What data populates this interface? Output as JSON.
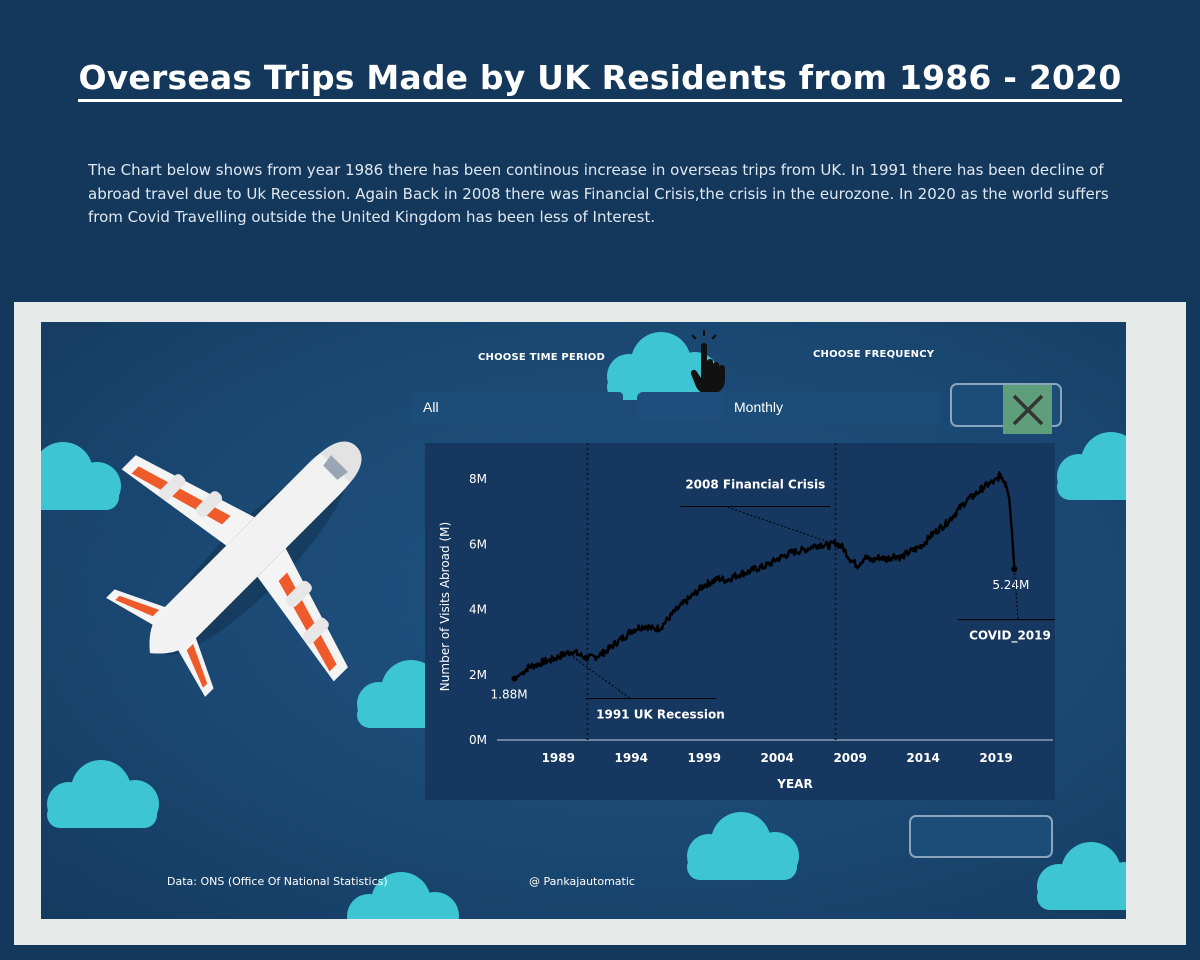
{
  "page": {
    "title": "Overseas Trips Made by UK Residents from 1986 - 2020",
    "description": "The Chart below shows from year 1986 there has been continous increase in overseas trips from UK. In 1991 there has been decline of  abroad travel due to Uk Recession.   Again Back in 2008 there was Financial Crisis,the crisis in the eurozone. In 2020 as the world suffers from Covid Travelling outside the United Kingdom has been less of Interest."
  },
  "controls": {
    "time_period_label": "CHOOSE TIME PERIOD",
    "time_period_value": "All",
    "frequency_label": "CHOOSE FREQUENCY",
    "frequency_value": "Monthly"
  },
  "icons": {
    "pointer": "hand-pointer-icon",
    "close": "close-icon",
    "plane": "airplane-icon",
    "clouds": "cloud-icon"
  },
  "colors": {
    "page_bg": "#14375c",
    "dashboard_bg": "#1a4872",
    "chart_bg": "#16375f",
    "cloud": "#3ec5d3",
    "line": "#000000",
    "close_bg": "#5e9e7b"
  },
  "footer": {
    "source": "Data: ONS (Office Of National Statistics)",
    "credit": "@ Pankajautomatic"
  },
  "chart_data": {
    "type": "line",
    "title": "",
    "xlabel": "YEAR",
    "ylabel": "Number of Visits Abroad (M)",
    "xlim": [
      1984.8,
      2022.9
    ],
    "ylim": [
      0,
      8.8
    ],
    "x_ticks": [
      1989,
      1994,
      1999,
      2004,
      2009,
      2014,
      2019
    ],
    "y_ticks": [
      0,
      2,
      4,
      6,
      8
    ],
    "y_tick_labels": [
      "0M",
      "2M",
      "4M",
      "6M",
      "8M"
    ],
    "grid": false,
    "series": [
      {
        "x": [
          1986.0,
          1986.5,
          1987.0,
          1987.5,
          1988.0,
          1988.5,
          1989.0,
          1989.5,
          1990.0,
          1990.5,
          1991.0,
          1991.5,
          1992.0,
          1992.5,
          1993.0,
          1993.5,
          1994.0,
          1994.5,
          1995.0,
          1995.5,
          1996.0,
          1996.5,
          1997.0,
          1997.5,
          1998.0,
          1998.5,
          1999.0,
          1999.5,
          2000.0,
          2000.5,
          2001.0,
          2001.5,
          2002.0,
          2002.5,
          2003.0,
          2003.5,
          2004.0,
          2004.5,
          2005.0,
          2005.5,
          2006.0,
          2006.5,
          2007.0,
          2007.5,
          2008.0,
          2008.5,
          2009.0,
          2009.5,
          2010.0,
          2010.5,
          2011.0,
          2011.5,
          2012.0,
          2012.5,
          2013.0,
          2013.5,
          2014.0,
          2014.5,
          2015.0,
          2015.5,
          2016.0,
          2016.5,
          2017.0,
          2017.5,
          2018.0,
          2018.5,
          2019.0,
          2019.3,
          2019.5,
          2019.7,
          2019.9,
          2020.1,
          2020.25
        ],
        "values": [
          1.88,
          2.05,
          2.25,
          2.3,
          2.4,
          2.45,
          2.55,
          2.65,
          2.72,
          2.6,
          2.5,
          2.55,
          2.65,
          2.8,
          3.0,
          3.15,
          3.35,
          3.45,
          3.5,
          3.4,
          3.45,
          3.7,
          3.95,
          4.15,
          4.35,
          4.55,
          4.75,
          4.85,
          4.95,
          4.9,
          5.0,
          5.1,
          5.15,
          5.25,
          5.3,
          5.4,
          5.55,
          5.65,
          5.75,
          5.8,
          5.85,
          5.95,
          6.0,
          5.95,
          6.05,
          5.9,
          5.55,
          5.35,
          5.6,
          5.5,
          5.6,
          5.55,
          5.65,
          5.6,
          5.75,
          5.85,
          6.0,
          6.25,
          6.45,
          6.6,
          6.85,
          7.1,
          7.35,
          7.5,
          7.7,
          7.85,
          7.95,
          8.15,
          8.0,
          7.8,
          7.4,
          6.3,
          5.24
        ]
      }
    ],
    "data_labels": [
      {
        "x": 1986.0,
        "y": 1.88,
        "text": "1.88M"
      },
      {
        "x": 2020.25,
        "y": 5.24,
        "text": "5.24M"
      }
    ],
    "reference_lines": [
      {
        "x": 1991.0,
        "style": "dotted"
      },
      {
        "x": 2008.0,
        "style": "dotted"
      }
    ],
    "annotations": [
      {
        "text": "1991 UK Recession",
        "point": [
          1990.0,
          2.55
        ],
        "label_at": [
          1996.0,
          0.78
        ]
      },
      {
        "text": "2008 Financial Crisis",
        "point": [
          2008.0,
          6.0
        ],
        "label_at": [
          2002.5,
          7.65
        ]
      },
      {
        "text": "COVID_2019",
        "point": [
          2020.25,
          5.24
        ],
        "label_at": [
          2020.5,
          3.2
        ]
      }
    ]
  }
}
